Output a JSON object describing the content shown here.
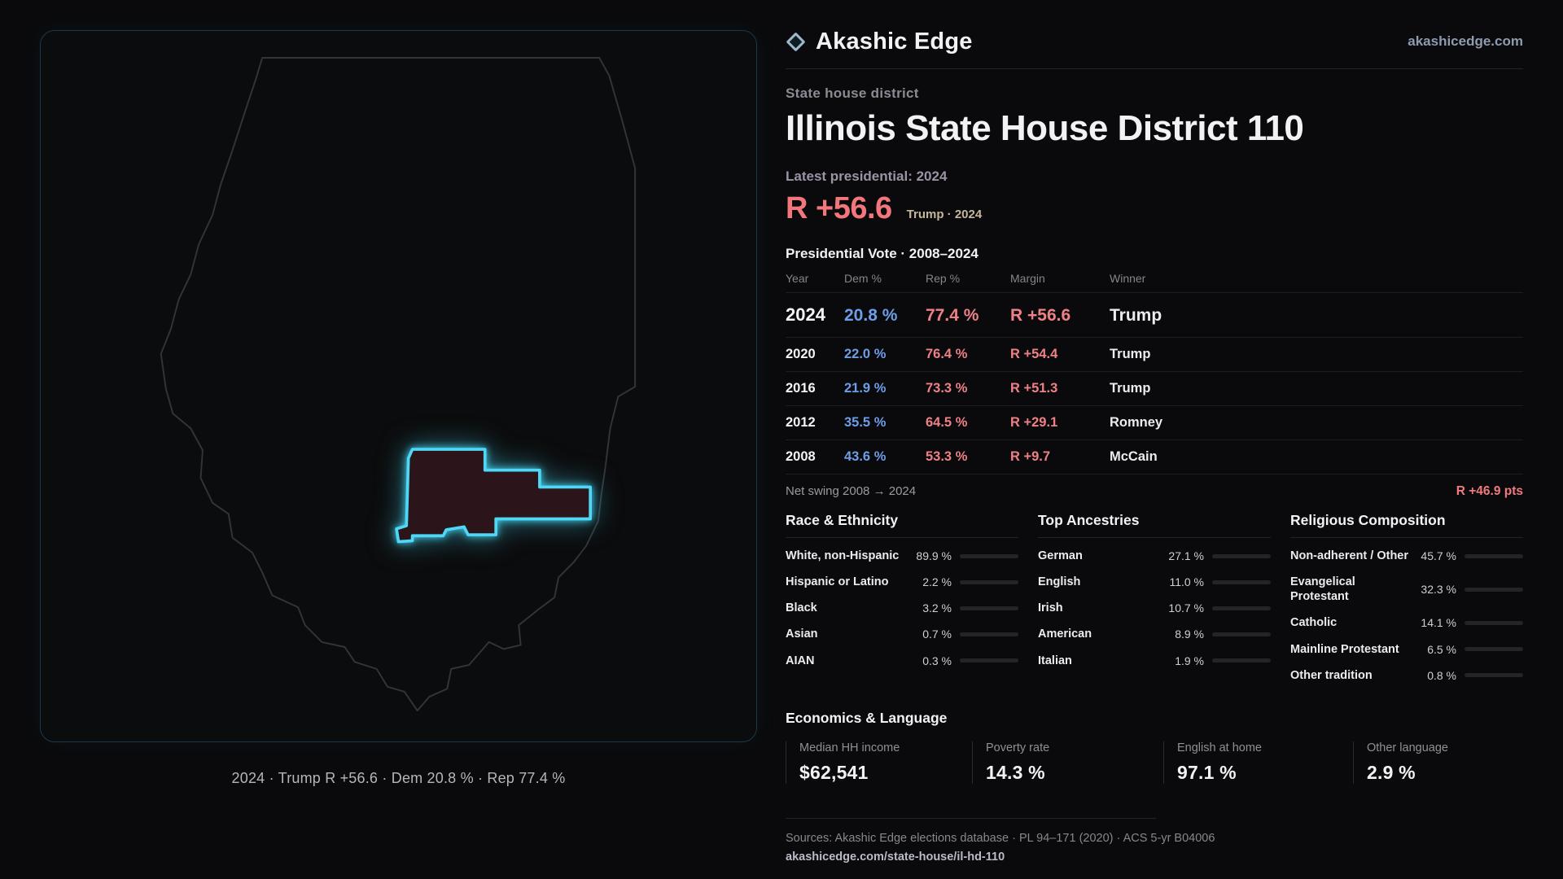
{
  "colors": {
    "dem": "#6d9ee8",
    "rep": "#ee8186",
    "accent_cyan": "#4fd8f6"
  },
  "brand": {
    "name": "Akashic Edge",
    "domain": "akashicedge.com",
    "logo": "diamond-icon"
  },
  "map": {
    "caption": "2024 · Trump R +56.6 · Dem 20.8 % · Rep 77.4 %"
  },
  "hero": {
    "kicker": "State house district",
    "title": "Illinois State House District 110",
    "latest": "Latest presidential: 2024",
    "margin": "R +56.6",
    "margin_sub": "Trump · 2024"
  },
  "vote": {
    "title": "Presidential Vote · 2008–2024",
    "headers": [
      "Year",
      "Dem %",
      "Rep %",
      "Margin",
      "Winner"
    ],
    "rows": [
      {
        "year": "2024",
        "dem": "20.8 %",
        "rep": "77.4 %",
        "margin": "R +56.6",
        "winner": "Trump",
        "emphasis": true
      },
      {
        "year": "2020",
        "dem": "22.0 %",
        "rep": "76.4 %",
        "margin": "R +54.4",
        "winner": "Trump",
        "emphasis": false
      },
      {
        "year": "2016",
        "dem": "21.9 %",
        "rep": "73.3 %",
        "margin": "R +51.3",
        "winner": "Trump",
        "emphasis": false
      },
      {
        "year": "2012",
        "dem": "35.5 %",
        "rep": "64.5 %",
        "margin": "R +29.1",
        "winner": "Romney",
        "emphasis": false
      },
      {
        "year": "2008",
        "dem": "43.6 %",
        "rep": "53.3 %",
        "margin": "R +9.7",
        "winner": "McCain",
        "emphasis": false
      }
    ]
  },
  "net_swing": {
    "label": "Net swing 2008 → 2024",
    "value": "R +46.9 pts"
  },
  "demographics": [
    {
      "title": "Race & Ethnicity",
      "rows": [
        {
          "label": "White, non-Hispanic",
          "value": "89.9 %",
          "pct": 89.9,
          "color": "#a9aede"
        },
        {
          "label": "Hispanic or Latino",
          "value": "2.2 %",
          "pct": 2.2,
          "color": "#e2973f"
        },
        {
          "label": "Black",
          "value": "3.2 %",
          "pct": 3.2,
          "color": "#8d7ece"
        },
        {
          "label": "Asian",
          "value": "0.7 %",
          "pct": 0.7,
          "color": "#d96a87"
        },
        {
          "label": "AIAN",
          "value": "0.3 %",
          "pct": 0.3,
          "color": "#d8d8dc"
        }
      ]
    },
    {
      "title": "Top Ancestries",
      "rows": [
        {
          "label": "German",
          "value": "27.1 %",
          "pct": 27.1,
          "color": "#b9bfc9"
        },
        {
          "label": "English",
          "value": "11.0 %",
          "pct": 11.0,
          "color": "#b9bfc9"
        },
        {
          "label": "Irish",
          "value": "10.7 %",
          "pct": 10.7,
          "color": "#b9bfc9"
        },
        {
          "label": "American",
          "value": "8.9 %",
          "pct": 8.9,
          "color": "#b9bfc9"
        },
        {
          "label": "Italian",
          "value": "1.9 %",
          "pct": 1.9,
          "color": "#b9bfc9"
        }
      ]
    },
    {
      "title": "Religious Composition",
      "rows": [
        {
          "label": "Non-adherent / Other",
          "value": "45.7 %",
          "pct": 45.7,
          "color": "#9aa1ad"
        },
        {
          "label": "Evangelical Protestant",
          "value": "32.3 %",
          "pct": 32.3,
          "color": "#ee8186"
        },
        {
          "label": "Catholic",
          "value": "14.1 %",
          "pct": 14.1,
          "color": "#e8c14a"
        },
        {
          "label": "Mainline Protestant",
          "value": "6.5 %",
          "pct": 6.5,
          "color": "#6d9ee8"
        },
        {
          "label": "Other tradition",
          "value": "0.8 %",
          "pct": 0.8,
          "color": "#b9bfc9"
        }
      ]
    }
  ],
  "economics": {
    "title": "Economics & Language",
    "stats": [
      {
        "label": "Median HH income",
        "value": "$62,541"
      },
      {
        "label": "Poverty rate",
        "value": "14.3 %"
      },
      {
        "label": "English at home",
        "value": "97.1 %"
      },
      {
        "label": "Other language",
        "value": "2.9 %"
      }
    ]
  },
  "footer": {
    "sources": "Sources: Akashic Edge elections database · PL 94–171 (2020) · ACS 5-yr B04006",
    "permalink": "akashicedge.com/state-house/il-hd-110"
  }
}
